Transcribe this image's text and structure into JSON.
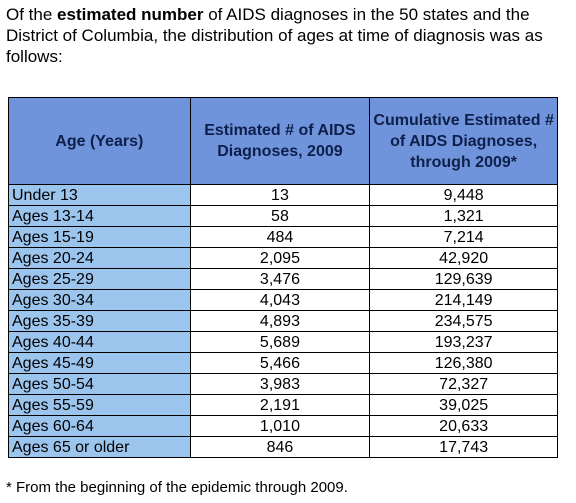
{
  "intro": {
    "before": "Of the",
    "bold": "estimated number",
    "after": "of AIDS diagnoses in the 50 states and the District of Columbia, the distribution of ages at time of diagnosis was as follows:"
  },
  "table": {
    "header": [
      "Age (Years)",
      "Estimated # of AIDS Diagnoses, 2009",
      "Cumulative Estimated # of AIDS Diagnoses, through 2009*"
    ],
    "rows": [
      [
        "Under 13",
        "13",
        "9,448"
      ],
      [
        "Ages 13-14",
        "58",
        "1,321"
      ],
      [
        "Ages 15-19",
        "484",
        "7,214"
      ],
      [
        "Ages 20-24",
        "2,095",
        "42,920"
      ],
      [
        "Ages 25-29",
        "3,476",
        "129,639"
      ],
      [
        "Ages 30-34",
        "4,043",
        "214,149"
      ],
      [
        "Ages 35-39",
        "4,893",
        "234,575"
      ],
      [
        "Ages 40-44",
        "5,689",
        "193,237"
      ],
      [
        "Ages 45-49",
        "5,466",
        "126,380"
      ],
      [
        "Ages 50-54",
        "3,983",
        "72,327"
      ],
      [
        "Ages 55-59",
        "2,191",
        "39,025"
      ],
      [
        "Ages 60-64",
        "1,010",
        "20,633"
      ],
      [
        "Ages 65 or older",
        "846",
        "17,743"
      ]
    ]
  },
  "footnote": "* From the beginning of the epidemic through 2009."
}
